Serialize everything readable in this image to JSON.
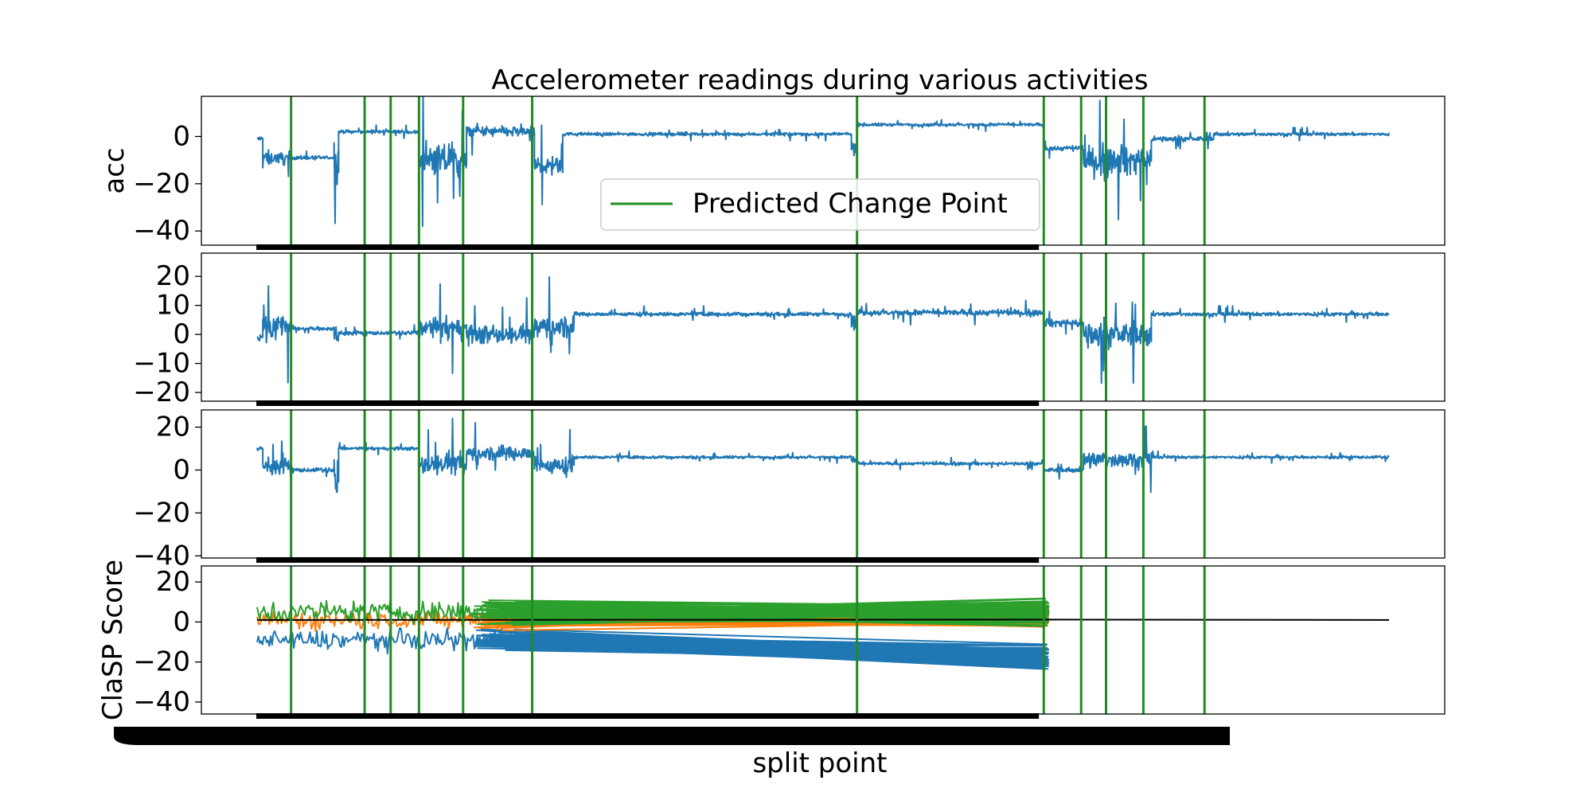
{
  "chart_data": {
    "type": "line",
    "title": "Accelerometer readings during various activities",
    "xlabel": "split point",
    "legend": {
      "label": "Predicted Change Point",
      "color": "#228b22",
      "placement": "upper-center of first panel"
    },
    "x_range": [
      0,
      1000
    ],
    "change_points": [
      30,
      95,
      118,
      143,
      182,
      243,
      530,
      695,
      728,
      750,
      783,
      837
    ],
    "colors": {
      "series_blue": "#1f77b4",
      "series_orange": "#ff7f0e",
      "series_green": "#2ca02c",
      "change_point": "#228b22",
      "score": "#000000"
    },
    "panels": [
      {
        "ylabel": "acc",
        "ylim": [
          -46,
          17
        ],
        "yticks": [
          -40,
          -20,
          0
        ],
        "ytick_labels": [
          "−40",
          "−20",
          "0"
        ],
        "series": [
          {
            "color": "#1f77b4",
            "segments": [
              {
                "x": [
                  0,
                  5
                ],
                "level": -1,
                "noise": 3
              },
              {
                "x": [
                  5,
                  30
                ],
                "level": -9,
                "noise": 9
              },
              {
                "x": [
                  30,
                  68
                ],
                "level": -9,
                "noise": 2
              },
              {
                "x": [
                  68,
                  72
                ],
                "level": -10,
                "noise": 28
              },
              {
                "x": [
                  72,
                  143
                ],
                "level": 2,
                "noise": 2
              },
              {
                "x": [
                  143,
                  185
                ],
                "level": -10,
                "noise": 20
              },
              {
                "x": [
                  185,
                  245
                ],
                "level": 2,
                "noise": 7
              },
              {
                "x": [
                  245,
                  270
                ],
                "level": -12,
                "noise": 12
              },
              {
                "x": [
                  270,
                  525
                ],
                "level": 1,
                "noise": 2
              },
              {
                "x": [
                  525,
                  530
                ],
                "level": -5,
                "noise": 8
              },
              {
                "x": [
                  530,
                  695
                ],
                "level": 5,
                "noise": 2
              },
              {
                "x": [
                  695,
                  730
                ],
                "level": -5,
                "noise": 3
              },
              {
                "x": [
                  730,
                  790
                ],
                "level": -10,
                "noise": 18
              },
              {
                "x": [
                  790,
                  845
                ],
                "level": -1,
                "noise": 3
              },
              {
                "x": [
                  845,
                  1000
                ],
                "level": 1,
                "noise": 2
              }
            ]
          }
        ]
      },
      {
        "ylabel": "",
        "ylim": [
          -23,
          28
        ],
        "yticks": [
          -20,
          -10,
          0,
          10,
          20
        ],
        "ytick_labels": [
          "−20",
          "−10",
          "0",
          "10",
          "20"
        ],
        "series": [
          {
            "color": "#1f77b4",
            "segments": [
              {
                "x": [
                  0,
                  5
                ],
                "level": -1,
                "noise": 3
              },
              {
                "x": [
                  5,
                  30
                ],
                "level": 3,
                "noise": 14
              },
              {
                "x": [
                  30,
                  68
                ],
                "level": 2,
                "noise": 2
              },
              {
                "x": [
                  68,
                  72
                ],
                "level": 0,
                "noise": 22
              },
              {
                "x": [
                  72,
                  143
                ],
                "level": 0.5,
                "noise": 2
              },
              {
                "x": [
                  143,
                  185
                ],
                "level": 2,
                "noise": 11
              },
              {
                "x": [
                  185,
                  245
                ],
                "level": 0,
                "noise": 9
              },
              {
                "x": [
                  245,
                  280
                ],
                "level": 3,
                "noise": 12
              },
              {
                "x": [
                  280,
                  525
                ],
                "level": 7,
                "noise": 2
              },
              {
                "x": [
                  525,
                  530
                ],
                "level": 5,
                "noise": 10
              },
              {
                "x": [
                  530,
                  695
                ],
                "level": 7.5,
                "noise": 3
              },
              {
                "x": [
                  695,
                  730
                ],
                "level": 4,
                "noise": 4
              },
              {
                "x": [
                  730,
                  790
                ],
                "level": 0,
                "noise": 12
              },
              {
                "x": [
                  790,
                  1000
                ],
                "level": 7,
                "noise": 2
              }
            ]
          }
        ]
      },
      {
        "ylabel": "",
        "ylim": [
          -41,
          28
        ],
        "yticks": [
          -40,
          -20,
          0,
          20
        ],
        "ytick_labels": [
          "−40",
          "−20",
          "0",
          "20"
        ],
        "series": [
          {
            "color": "#1f77b4",
            "segments": [
              {
                "x": [
                  0,
                  5
                ],
                "level": 10,
                "noise": 3
              },
              {
                "x": [
                  5,
                  30
                ],
                "level": 2,
                "noise": 11
              },
              {
                "x": [
                  30,
                  68
                ],
                "level": 0,
                "noise": 3
              },
              {
                "x": [
                  68,
                  72
                ],
                "level": -5,
                "noise": 30
              },
              {
                "x": [
                  72,
                  143
                ],
                "level": 10,
                "noise": 2
              },
              {
                "x": [
                  143,
                  185
                ],
                "level": 3,
                "noise": 15
              },
              {
                "x": [
                  185,
                  245
                ],
                "level": 8,
                "noise": 10
              },
              {
                "x": [
                  245,
                  280
                ],
                "level": 2,
                "noise": 12
              },
              {
                "x": [
                  280,
                  525
                ],
                "level": 6,
                "noise": 2
              },
              {
                "x": [
                  525,
                  530
                ],
                "level": 4,
                "noise": 8
              },
              {
                "x": [
                  530,
                  695
                ],
                "level": 3,
                "noise": 2
              },
              {
                "x": [
                  695,
                  730
                ],
                "level": 0,
                "noise": 3
              },
              {
                "x": [
                  730,
                  790
                ],
                "level": 5,
                "noise": 11
              },
              {
                "x": [
                  790,
                  1000
                ],
                "level": 6,
                "noise": 2
              }
            ]
          }
        ]
      },
      {
        "ylabel": "ClaSP Score",
        "ylim": [
          -46,
          28
        ],
        "yticks": [
          -40,
          -20,
          0,
          20
        ],
        "ytick_labels": [
          "−40",
          "−20",
          "0",
          "20"
        ],
        "score_line": {
          "x": [
            0,
            690,
            1000
          ],
          "y": [
            1,
            1.2,
            1
          ]
        },
        "series": [
          {
            "color": "#1f77b4",
            "start": [
              0,
              30
            ],
            "level": -9,
            "noise": 12,
            "fan_to": 700,
            "fan_level": -18,
            "fan_spread": 9
          },
          {
            "color": "#ff7f0e",
            "start": [
              0,
              30
            ],
            "level": 1,
            "noise": 11,
            "fan_to": 700,
            "fan_level": 3,
            "fan_spread": 8
          },
          {
            "color": "#2ca02c",
            "start": [
              0,
              30
            ],
            "level": 5,
            "noise": 13,
            "fan_to": 700,
            "fan_level": 5,
            "fan_spread": 10
          }
        ]
      }
    ]
  }
}
